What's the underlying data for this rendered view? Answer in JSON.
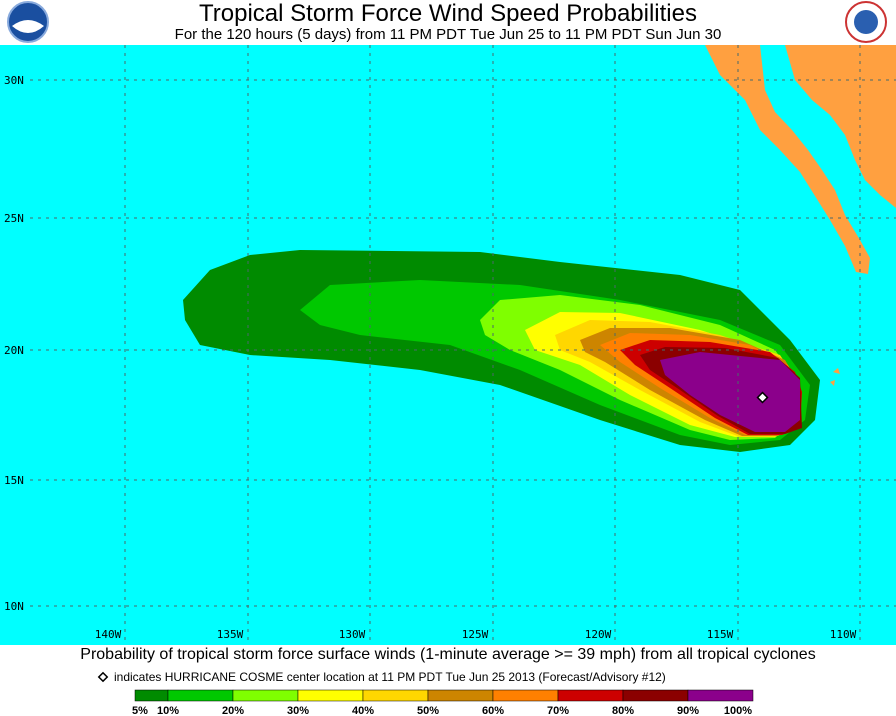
{
  "header": {
    "title": "Tropical Storm Force Wind Speed Probabilities",
    "subtitle": "For the 120 hours (5 days) from 11 PM PDT Tue Jun 25 to 11 PM PDT Sun Jun 30"
  },
  "map": {
    "lat_labels": [
      "30N",
      "25N",
      "20N",
      "15N",
      "10N"
    ],
    "lon_labels": [
      "140W",
      "135W",
      "130W",
      "125W",
      "120W",
      "115W",
      "110W"
    ]
  },
  "footer": {
    "caption": "Probability of tropical storm force surface winds (1-minute average >= 39 mph) from all tropical cyclones",
    "note": "indicates HURRICANE COSME center location at 11 PM PDT Tue Jun 25 2013 (Forecast/Advisory #12)",
    "legend_colors": [
      "#008b00",
      "#00c800",
      "#7fff00",
      "#ffff00",
      "#ffd700",
      "#cd8500",
      "#ff8000",
      "#cd0000",
      "#8b0000",
      "#8b008b"
    ],
    "legend_labels": [
      "5%",
      "10%",
      "20%",
      "30%",
      "40%",
      "50%",
      "60%",
      "70%",
      "80%",
      "90%",
      "100%"
    ]
  }
}
